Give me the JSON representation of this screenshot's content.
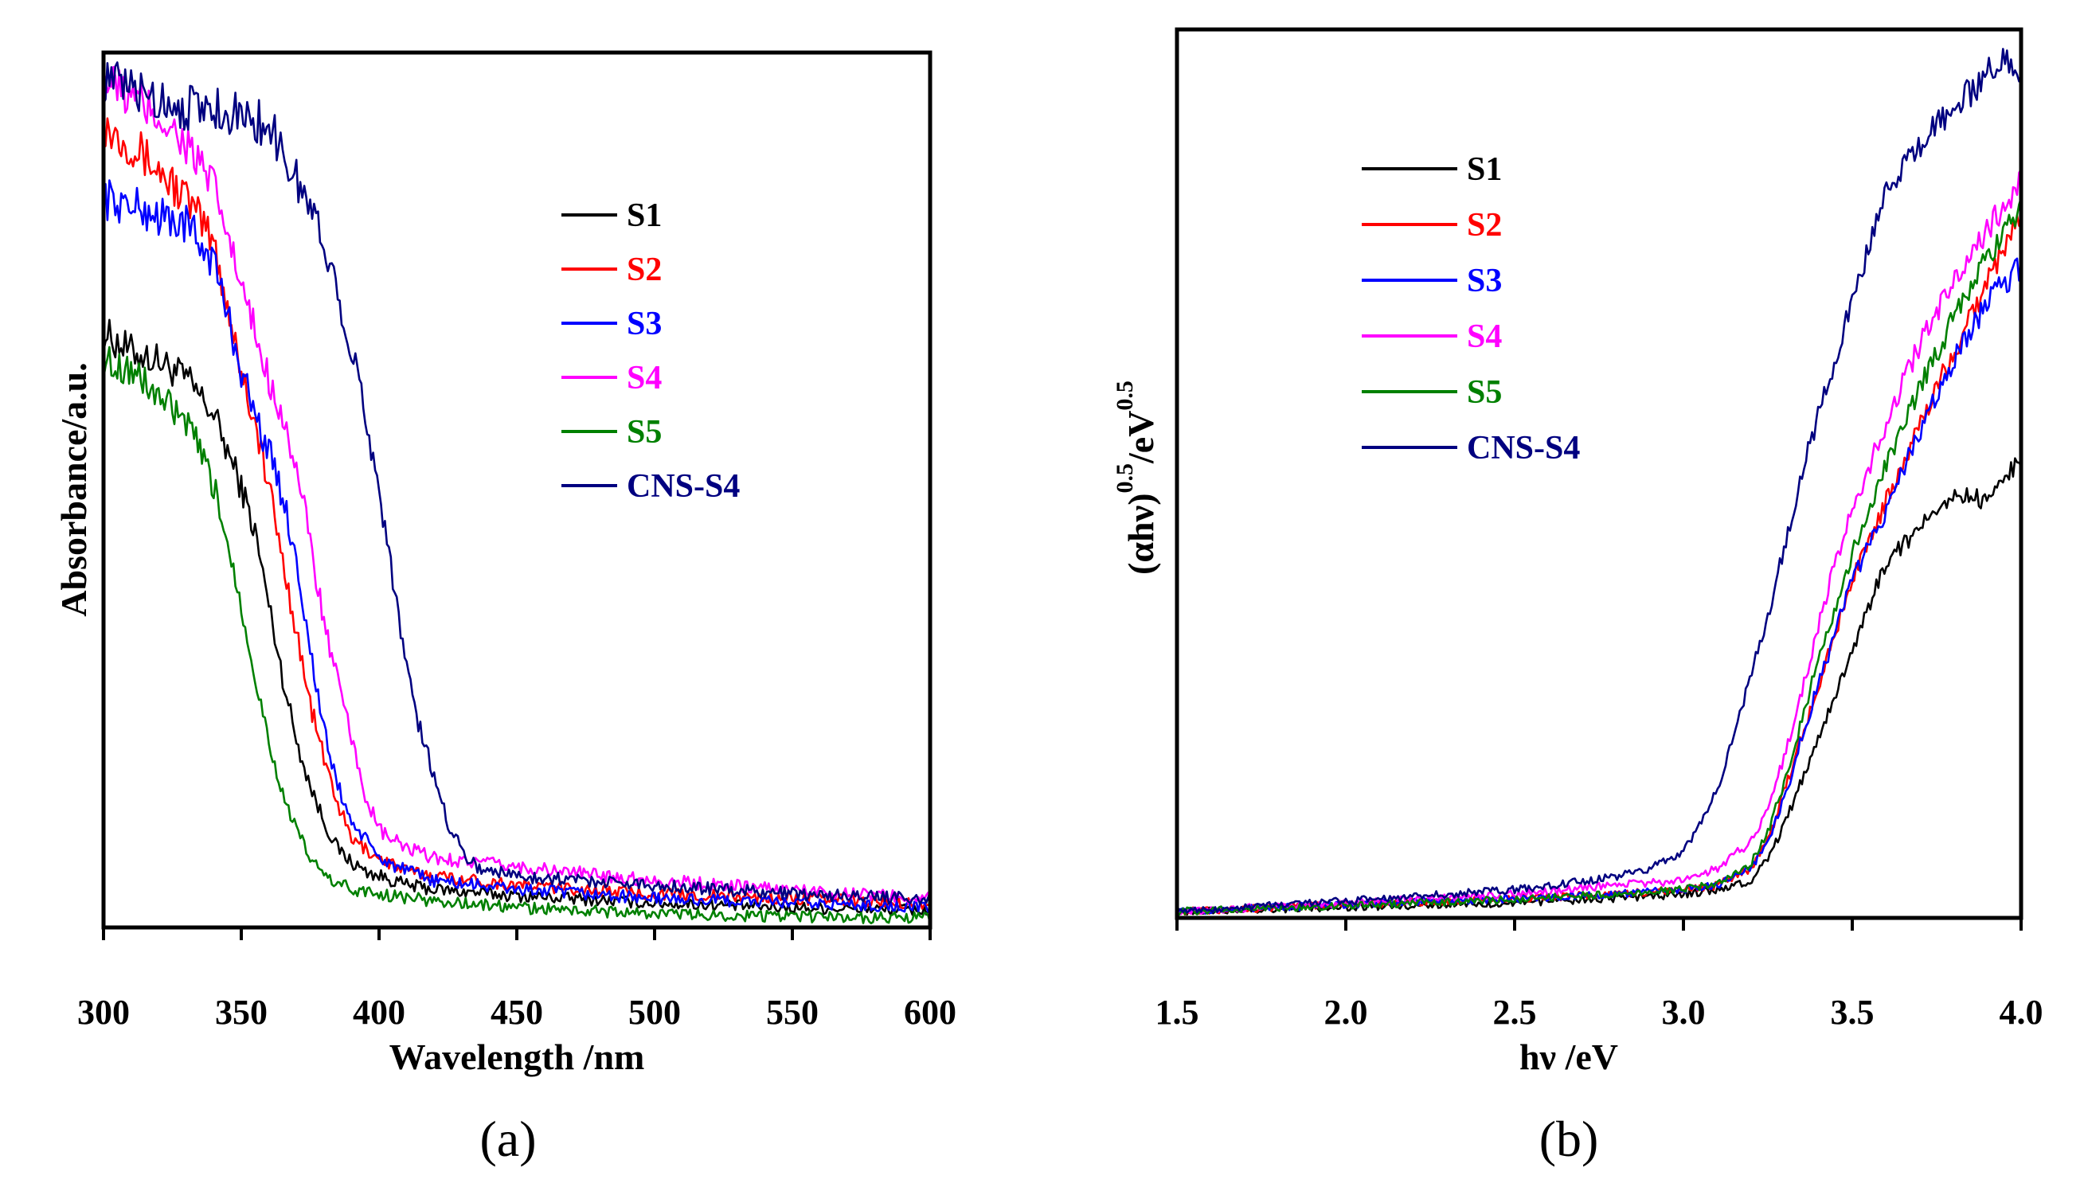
{
  "chart_data": [
    {
      "type": "line",
      "panel_label": "(a)",
      "title": "",
      "xlabel": "Wavelength /nm",
      "ylabel": "Absorbance/a.u.",
      "xlim": [
        300,
        600
      ],
      "ylim": [
        0,
        1
      ],
      "xticks": [
        300,
        350,
        400,
        450,
        500,
        550,
        600
      ],
      "xtick_labels": [
        "300",
        "350",
        "400",
        "450",
        "500",
        "550",
        "600"
      ],
      "yticks_shown": false,
      "legend_position": "upper-right",
      "series": [
        {
          "name": "S1",
          "color": "#000000",
          "x": [
            300,
            310,
            320,
            330,
            340,
            350,
            355,
            360,
            365,
            370,
            375,
            380,
            385,
            390,
            395,
            400,
            410,
            420,
            450,
            500,
            550,
            600
          ],
          "y": [
            0.65,
            0.63,
            0.62,
            0.6,
            0.56,
            0.48,
            0.43,
            0.35,
            0.27,
            0.2,
            0.15,
            0.11,
            0.08,
            0.065,
            0.055,
            0.05,
            0.04,
            0.035,
            0.028,
            0.02,
            0.015,
            0.012
          ]
        },
        {
          "name": "S2",
          "color": "#ff0000",
          "x": [
            300,
            310,
            320,
            330,
            340,
            345,
            350,
            355,
            360,
            365,
            370,
            375,
            380,
            385,
            390,
            400,
            410,
            420,
            450,
            500,
            550,
            600
          ],
          "y": [
            0.88,
            0.86,
            0.83,
            0.8,
            0.75,
            0.68,
            0.61,
            0.55,
            0.48,
            0.4,
            0.32,
            0.24,
            0.18,
            0.13,
            0.09,
            0.07,
            0.055,
            0.05,
            0.04,
            0.03,
            0.025,
            0.02
          ]
        },
        {
          "name": "S3",
          "color": "#0000ff",
          "x": [
            300,
            310,
            320,
            330,
            340,
            345,
            350,
            355,
            360,
            365,
            370,
            375,
            380,
            385,
            390,
            400,
            410,
            420,
            450,
            500,
            550,
            600
          ],
          "y": [
            0.8,
            0.79,
            0.78,
            0.77,
            0.73,
            0.67,
            0.61,
            0.56,
            0.52,
            0.47,
            0.4,
            0.3,
            0.21,
            0.15,
            0.11,
            0.07,
            0.055,
            0.045,
            0.035,
            0.025,
            0.02,
            0.015
          ]
        },
        {
          "name": "S4",
          "color": "#ff00ff",
          "x": [
            300,
            310,
            320,
            330,
            340,
            345,
            350,
            355,
            360,
            365,
            370,
            375,
            380,
            390,
            395,
            400,
            410,
            420,
            450,
            500,
            550,
            600
          ],
          "y": [
            0.93,
            0.91,
            0.89,
            0.86,
            0.81,
            0.76,
            0.7,
            0.65,
            0.6,
            0.56,
            0.5,
            0.42,
            0.33,
            0.2,
            0.14,
            0.1,
            0.08,
            0.07,
            0.06,
            0.045,
            0.035,
            0.025
          ]
        },
        {
          "name": "S5",
          "color": "#008000",
          "x": [
            300,
            310,
            320,
            330,
            335,
            340,
            345,
            350,
            355,
            360,
            365,
            370,
            375,
            380,
            390,
            400,
            420,
            450,
            500,
            550,
            600
          ],
          "y": [
            0.62,
            0.61,
            0.58,
            0.55,
            0.52,
            0.48,
            0.42,
            0.35,
            0.27,
            0.2,
            0.14,
            0.1,
            0.07,
            0.05,
            0.035,
            0.03,
            0.022,
            0.015,
            0.008,
            0.005,
            0.003
          ]
        },
        {
          "name": "CNS-S4",
          "color": "#000080",
          "x": [
            300,
            310,
            320,
            330,
            340,
            350,
            360,
            365,
            370,
            375,
            380,
            385,
            390,
            395,
            400,
            405,
            410,
            415,
            420,
            425,
            430,
            435,
            450,
            500,
            550,
            600
          ],
          "y": [
            0.93,
            0.92,
            0.91,
            0.9,
            0.9,
            0.89,
            0.88,
            0.85,
            0.82,
            0.79,
            0.75,
            0.7,
            0.63,
            0.56,
            0.48,
            0.38,
            0.28,
            0.21,
            0.16,
            0.11,
            0.08,
            0.06,
            0.05,
            0.04,
            0.03,
            0.025
          ]
        }
      ]
    },
    {
      "type": "line",
      "panel_label": "(b)",
      "title": "",
      "xlabel": "hν /eV",
      "ylabel_main": "(αhν)",
      "ylabel_exp": "0.5",
      "ylabel_unit": "/eV",
      "xlim": [
        1.5,
        4.0
      ],
      "ylim": [
        0,
        1
      ],
      "xticks": [
        1.5,
        2.0,
        2.5,
        3.0,
        3.5,
        4.0
      ],
      "xtick_labels": [
        "1.5",
        "2.0",
        "2.5",
        "3.0",
        "3.5",
        "4.0"
      ],
      "yticks_shown": false,
      "legend_position": "upper-left",
      "series": [
        {
          "name": "S1",
          "color": "#000000",
          "x": [
            1.5,
            2.0,
            2.5,
            2.8,
            3.0,
            3.1,
            3.2,
            3.25,
            3.3,
            3.35,
            3.4,
            3.45,
            3.5,
            3.55,
            3.6,
            3.7,
            3.8,
            3.9,
            4.0
          ],
          "y": [
            0.0,
            0.005,
            0.01,
            0.015,
            0.02,
            0.025,
            0.035,
            0.06,
            0.1,
            0.15,
            0.2,
            0.25,
            0.3,
            0.35,
            0.4,
            0.44,
            0.48,
            0.47,
            0.52
          ]
        },
        {
          "name": "S2",
          "color": "#ff0000",
          "x": [
            1.5,
            2.0,
            2.5,
            2.8,
            3.0,
            3.1,
            3.2,
            3.25,
            3.3,
            3.35,
            3.4,
            3.45,
            3.5,
            3.6,
            3.7,
            3.8,
            3.9,
            4.0
          ],
          "y": [
            0.0,
            0.008,
            0.015,
            0.02,
            0.025,
            0.03,
            0.05,
            0.08,
            0.14,
            0.2,
            0.26,
            0.32,
            0.38,
            0.47,
            0.56,
            0.64,
            0.72,
            0.8
          ]
        },
        {
          "name": "S3",
          "color": "#0000ff",
          "x": [
            1.5,
            2.0,
            2.5,
            2.8,
            3.0,
            3.1,
            3.2,
            3.25,
            3.3,
            3.35,
            3.4,
            3.45,
            3.5,
            3.6,
            3.7,
            3.8,
            3.9,
            4.0
          ],
          "y": [
            0.0,
            0.008,
            0.015,
            0.02,
            0.025,
            0.03,
            0.05,
            0.08,
            0.13,
            0.2,
            0.26,
            0.32,
            0.38,
            0.46,
            0.55,
            0.63,
            0.7,
            0.74
          ]
        },
        {
          "name": "S4",
          "color": "#ff00ff",
          "x": [
            1.5,
            2.0,
            2.5,
            2.8,
            3.0,
            3.1,
            3.2,
            3.25,
            3.3,
            3.35,
            3.4,
            3.45,
            3.5,
            3.6,
            3.7,
            3.8,
            3.9,
            4.0
          ],
          "y": [
            0.0,
            0.01,
            0.02,
            0.03,
            0.035,
            0.05,
            0.08,
            0.12,
            0.18,
            0.25,
            0.33,
            0.4,
            0.46,
            0.56,
            0.65,
            0.72,
            0.78,
            0.84
          ]
        },
        {
          "name": "S5",
          "color": "#008000",
          "x": [
            1.5,
            2.0,
            2.5,
            2.8,
            3.0,
            3.1,
            3.2,
            3.25,
            3.3,
            3.35,
            3.4,
            3.45,
            3.5,
            3.6,
            3.7,
            3.8,
            3.9,
            4.0
          ],
          "y": [
            0.0,
            0.007,
            0.014,
            0.02,
            0.025,
            0.032,
            0.055,
            0.09,
            0.15,
            0.22,
            0.29,
            0.35,
            0.41,
            0.51,
            0.6,
            0.68,
            0.75,
            0.81
          ]
        },
        {
          "name": "CNS-S4",
          "color": "#000080",
          "x": [
            1.5,
            2.0,
            2.5,
            2.8,
            2.9,
            3.0,
            3.05,
            3.1,
            3.15,
            3.2,
            3.25,
            3.3,
            3.35,
            3.4,
            3.45,
            3.5,
            3.55,
            3.6,
            3.7,
            3.8,
            3.9,
            3.95,
            4.0
          ],
          "y": [
            0.0,
            0.012,
            0.025,
            0.04,
            0.05,
            0.07,
            0.1,
            0.14,
            0.2,
            0.27,
            0.34,
            0.42,
            0.5,
            0.57,
            0.63,
            0.7,
            0.76,
            0.82,
            0.88,
            0.92,
            0.96,
            0.98,
            0.95
          ]
        }
      ]
    }
  ]
}
